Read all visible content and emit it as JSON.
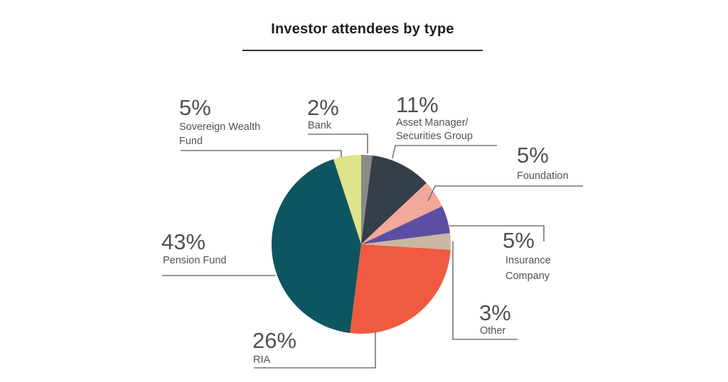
{
  "chart_data": {
    "type": "pie",
    "title": "Investor attendees by type",
    "slices": [
      {
        "key": "bank",
        "percent_label": "2%",
        "value": 2,
        "label_lines": [
          "Bank"
        ],
        "color": "#8a8a88"
      },
      {
        "key": "asset-manager",
        "percent_label": "11%",
        "value": 11,
        "label_lines": [
          "Asset Manager/",
          "Securities Group"
        ],
        "color": "#353f4a"
      },
      {
        "key": "foundation",
        "percent_label": "5%",
        "value": 5,
        "label_lines": [
          "Foundation"
        ],
        "color": "#f4a79b"
      },
      {
        "key": "insurance-company",
        "percent_label": "5%",
        "value": 5,
        "label_lines": [
          "Insurance",
          "Company"
        ],
        "color": "#5c4fa3"
      },
      {
        "key": "other",
        "percent_label": "3%",
        "value": 3,
        "label_lines": [
          "Other"
        ],
        "color": "#c9b7a3"
      },
      {
        "key": "ria",
        "percent_label": "26%",
        "value": 26,
        "label_lines": [
          "RIA"
        ],
        "color": "#ef5a40"
      },
      {
        "key": "pension-fund",
        "percent_label": "43%",
        "value": 43,
        "label_lines": [
          "Pension Fund"
        ],
        "color": "#0d5560"
      },
      {
        "key": "sovereign-wealth-fund",
        "percent_label": "5%",
        "value": 5,
        "label_lines": [
          "Sovereign Wealth",
          "Fund"
        ],
        "color": "#dfe38a"
      }
    ]
  }
}
